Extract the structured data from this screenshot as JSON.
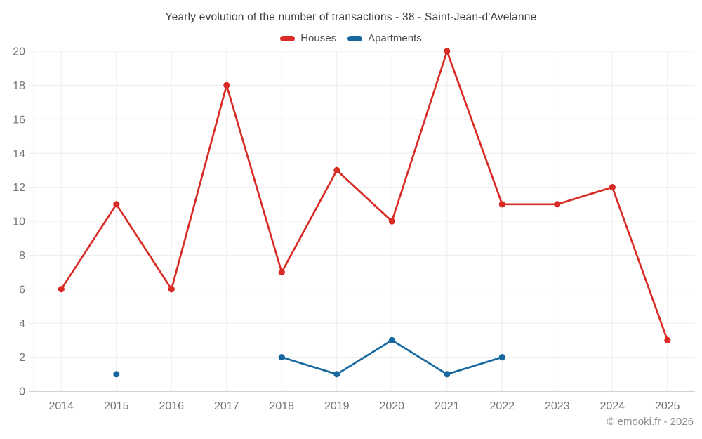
{
  "page": {
    "footer": "© emooki.fr - 2026"
  },
  "chart_data": {
    "type": "line",
    "title": "Yearly evolution of the number of transactions - 38 - Saint-Jean-d'Avelanne",
    "categories": [
      "2014",
      "2015",
      "2016",
      "2017",
      "2018",
      "2019",
      "2020",
      "2021",
      "2022",
      "2023",
      "2024",
      "2025"
    ],
    "series": [
      {
        "name": "Houses",
        "color": "#d92b26",
        "values": [
          6,
          11,
          6,
          18,
          7,
          13,
          10,
          20,
          11,
          11,
          12,
          3
        ]
      },
      {
        "name": "Apartments",
        "color": "#17689f",
        "values": [
          null,
          1,
          null,
          null,
          2,
          1,
          3,
          1,
          2,
          null,
          null,
          null
        ]
      }
    ],
    "xlabel": "",
    "ylabel": "",
    "ylim": [
      0,
      20
    ],
    "ytick_step": 2,
    "grid": true,
    "legend_position": "top"
  },
  "colors": {
    "grid_line": "#ededed",
    "axis_line": "#c4c4c4",
    "tick_label": "#757575",
    "title_text": "#3e3e3e",
    "legend_text": "#4a4a4a",
    "footer_text": "#8c8c8c"
  }
}
